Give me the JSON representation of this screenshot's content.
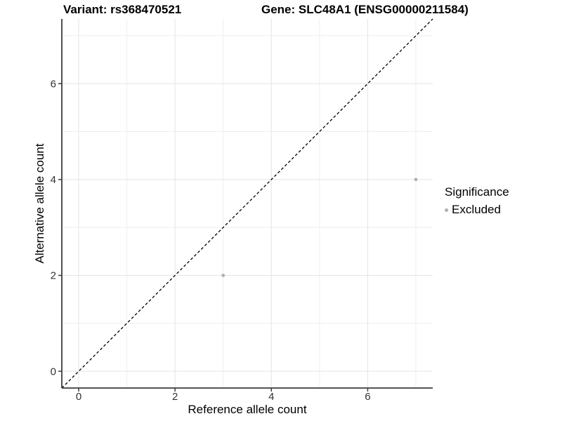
{
  "chart_data": {
    "type": "scatter",
    "titles": {
      "left": "Variant: rs368470521",
      "right": "Gene: SLC48A1 (ENSG00000211584)"
    },
    "xlabel": "Reference allele count",
    "ylabel": "Alternative allele count",
    "xlim": [
      -0.35,
      7.35
    ],
    "ylim": [
      -0.35,
      7.35
    ],
    "x_ticks": [
      0,
      2,
      4,
      6
    ],
    "y_ticks": [
      0,
      2,
      4,
      6
    ],
    "x_minor": [
      1,
      3,
      5,
      7
    ],
    "y_minor": [
      1,
      3,
      5,
      7
    ],
    "grid": true,
    "points": [
      {
        "x": 3,
        "y": 2,
        "significance": "Excluded"
      },
      {
        "x": 7,
        "y": 4,
        "significance": "Excluded"
      }
    ],
    "identity_line": {
      "slope": 1,
      "intercept": 0,
      "linetype": "dashed"
    },
    "legend": {
      "title": "Significance",
      "position": "right",
      "entries": [
        {
          "label": "Excluded",
          "color": "#b0b0b0"
        }
      ]
    },
    "colors": {
      "point": "#b0b0b0",
      "grid_major": "#e4e4e4",
      "grid_minor": "#eeeeee",
      "axis": "#3c3c3c",
      "identity_line": "#000000",
      "tick_text": "#333333"
    }
  }
}
